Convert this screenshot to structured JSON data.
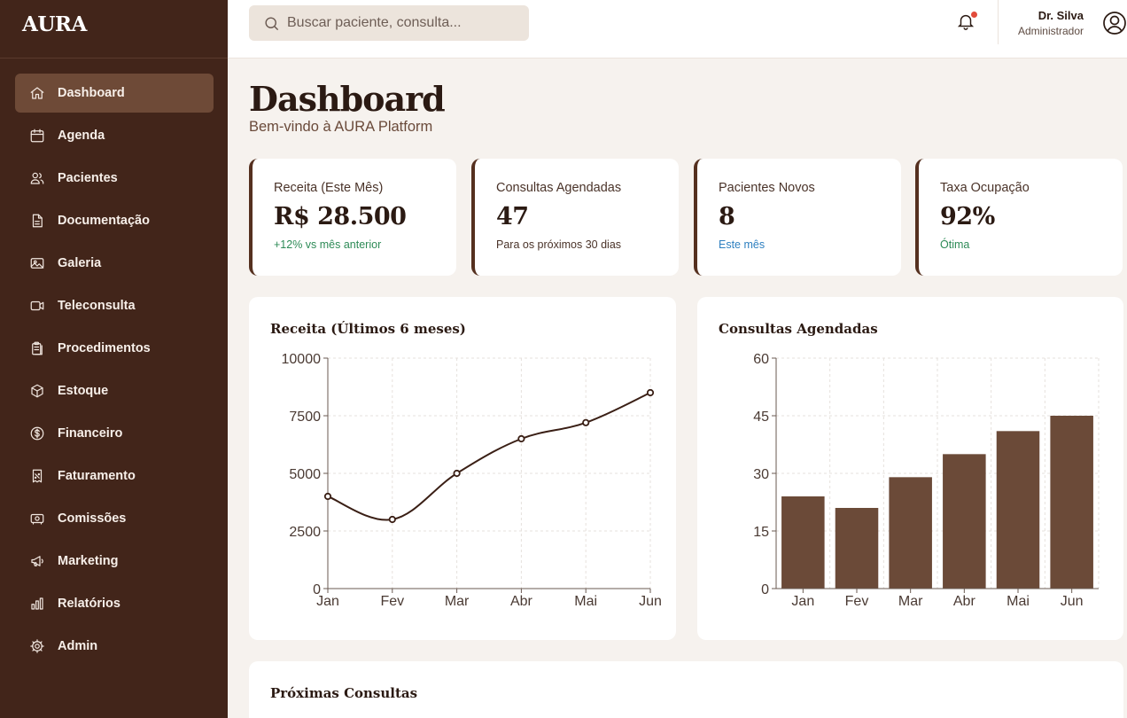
{
  "brand": "AURA",
  "sidebar": {
    "items": [
      {
        "label": "Dashboard",
        "icon": "home-icon",
        "active": true
      },
      {
        "label": "Agenda",
        "icon": "calendar-icon"
      },
      {
        "label": "Pacientes",
        "icon": "users-icon"
      },
      {
        "label": "Documentação",
        "icon": "document-icon"
      },
      {
        "label": "Galeria",
        "icon": "image-icon"
      },
      {
        "label": "Teleconsulta",
        "icon": "video-icon"
      },
      {
        "label": "Procedimentos",
        "icon": "clipboard-icon"
      },
      {
        "label": "Estoque",
        "icon": "box-icon"
      },
      {
        "label": "Financeiro",
        "icon": "dollar-icon"
      },
      {
        "label": "Faturamento",
        "icon": "receipt-icon"
      },
      {
        "label": "Comissões",
        "icon": "banknote-icon"
      },
      {
        "label": "Marketing",
        "icon": "megaphone-icon"
      },
      {
        "label": "Relatórios",
        "icon": "bar-chart-icon"
      },
      {
        "label": "Admin",
        "icon": "gear-icon"
      }
    ]
  },
  "header": {
    "search_placeholder": "Buscar paciente, consulta...",
    "user_name": "Dr. Silva",
    "user_role": "Administrador",
    "notification_dot_color": "#e24c3b"
  },
  "page": {
    "title": "Dashboard",
    "subtitle": "Bem-vindo à AURA Platform"
  },
  "stats": [
    {
      "label": "Receita (Este Mês)",
      "value": "R$ 28.500",
      "note": "+12% vs mês anterior",
      "note_color": "#2e8b57"
    },
    {
      "label": "Consultas Agendadas",
      "value": "47",
      "note": "Para os próximos 30 dias",
      "note_color": "#4a3329"
    },
    {
      "label": "Pacientes Novos",
      "value": "8",
      "note": "Este mês",
      "note_color": "#2f80c0"
    },
    {
      "label": "Taxa Ocupação",
      "value": "92%",
      "note": "Ótima",
      "note_color": "#2e8b57"
    }
  ],
  "cards": {
    "revenue_title": "Receita (Últimos 6 meses)",
    "appointments_title": "Consultas Agendadas",
    "upcoming_title": "Próximas Consultas"
  },
  "chart_data": [
    {
      "type": "line",
      "title": "Receita (Últimos 6 meses)",
      "categories": [
        "Jan",
        "Fev",
        "Mar",
        "Abr",
        "Mai",
        "Jun"
      ],
      "values": [
        4000,
        3000,
        5000,
        6500,
        7200,
        8500
      ],
      "ylim": [
        0,
        10000
      ],
      "yticks": [
        "0",
        "2500",
        "5000",
        "7500",
        "10000"
      ],
      "grid": true,
      "color": "#3a1f15"
    },
    {
      "type": "bar",
      "title": "Consultas Agendadas",
      "categories": [
        "Jan",
        "Fev",
        "Mar",
        "Abr",
        "Mai",
        "Jun"
      ],
      "values": [
        24,
        21,
        29,
        35,
        41,
        45
      ],
      "ylim": [
        0,
        60
      ],
      "yticks": [
        "0",
        "15",
        "30",
        "45",
        "60"
      ],
      "grid": true,
      "color": "#6b4a38"
    }
  ]
}
